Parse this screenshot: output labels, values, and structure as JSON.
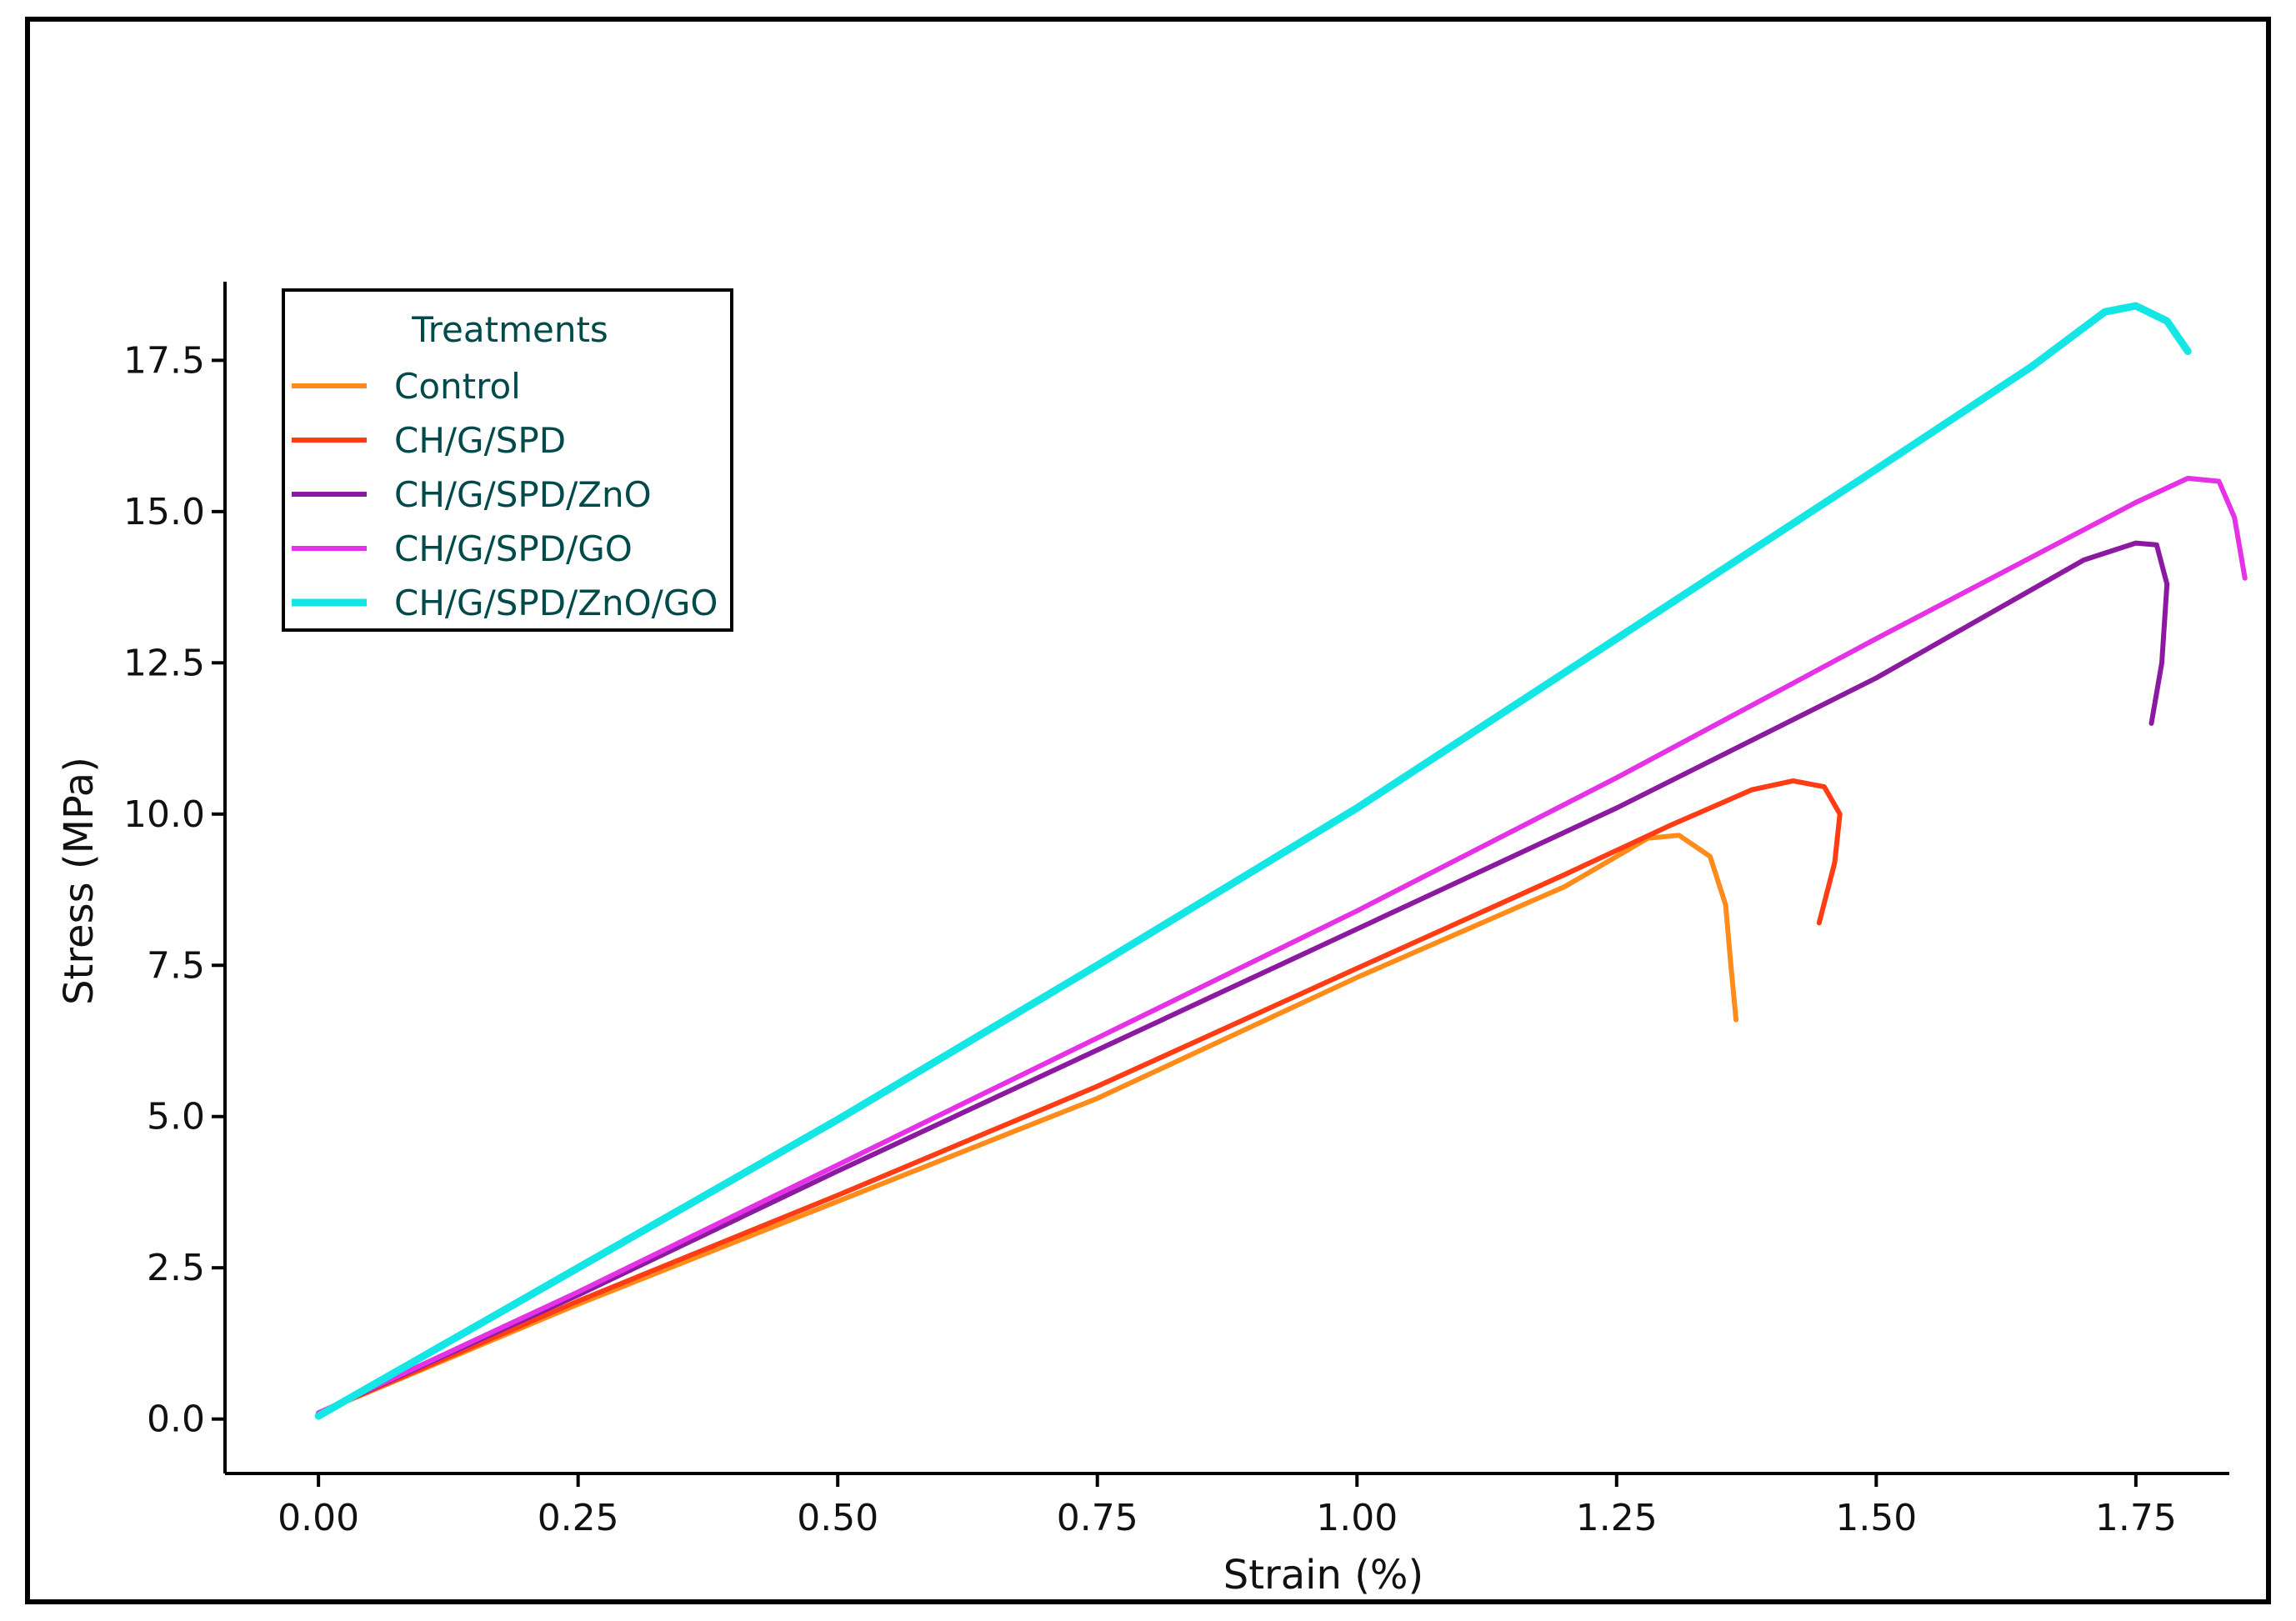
{
  "chart_data": {
    "type": "line",
    "xlabel": "Strain (%)",
    "ylabel": "Stress (MPa)",
    "xlim": [
      -0.09,
      1.84
    ],
    "ylim": [
      -0.9,
      18.8
    ],
    "xticks": [
      "0.00",
      "0.25",
      "0.50",
      "0.75",
      "1.00",
      "1.25",
      "1.50",
      "1.75"
    ],
    "xtick_values": [
      0,
      0.25,
      0.5,
      0.75,
      1.0,
      1.25,
      1.5,
      1.75
    ],
    "yticks": [
      "0.0",
      "2.5",
      "5.0",
      "7.5",
      "10.0",
      "12.5",
      "15.0",
      "17.5"
    ],
    "ytick_values": [
      0,
      2.5,
      5,
      7.5,
      10,
      12.5,
      15,
      17.5
    ],
    "grid": false,
    "legend": {
      "title": "Treatments",
      "position": "top-left"
    },
    "series": [
      {
        "name": "Control",
        "color": "#ff8c1a",
        "points": [
          [
            0,
            0.1
          ],
          [
            0.25,
            1.9
          ],
          [
            0.5,
            3.6
          ],
          [
            0.75,
            5.3
          ],
          [
            1.0,
            7.3
          ],
          [
            1.2,
            8.8
          ],
          [
            1.28,
            9.6
          ],
          [
            1.31,
            9.65
          ],
          [
            1.34,
            9.3
          ],
          [
            1.355,
            8.5
          ],
          [
            1.36,
            7.5
          ],
          [
            1.365,
            6.6
          ]
        ]
      },
      {
        "name": "CH/G/SPD",
        "color": "#ff3c14",
        "points": [
          [
            0,
            0.1
          ],
          [
            0.25,
            1.95
          ],
          [
            0.5,
            3.7
          ],
          [
            0.75,
            5.5
          ],
          [
            1.0,
            7.45
          ],
          [
            1.2,
            9.0
          ],
          [
            1.3,
            9.8
          ],
          [
            1.38,
            10.4
          ],
          [
            1.42,
            10.55
          ],
          [
            1.45,
            10.45
          ],
          [
            1.465,
            10.0
          ],
          [
            1.46,
            9.2
          ],
          [
            1.445,
            8.2
          ]
        ]
      },
      {
        "name": "CH/G/SPD/ZnO",
        "color": "#8c1aa0",
        "points": [
          [
            0,
            0.1
          ],
          [
            0.25,
            2.05
          ],
          [
            0.5,
            4.1
          ],
          [
            0.75,
            6.1
          ],
          [
            1.0,
            8.1
          ],
          [
            1.25,
            10.1
          ],
          [
            1.5,
            12.25
          ],
          [
            1.7,
            14.2
          ],
          [
            1.75,
            14.48
          ],
          [
            1.77,
            14.45
          ],
          [
            1.78,
            13.8
          ],
          [
            1.775,
            12.5
          ],
          [
            1.765,
            11.5
          ]
        ]
      },
      {
        "name": "CH/G/SPD/GO",
        "color": "#e632e6",
        "points": [
          [
            0,
            0.1
          ],
          [
            0.25,
            2.1
          ],
          [
            0.5,
            4.2
          ],
          [
            0.75,
            6.3
          ],
          [
            1.0,
            8.4
          ],
          [
            1.25,
            10.6
          ],
          [
            1.5,
            12.9
          ],
          [
            1.75,
            15.15
          ],
          [
            1.8,
            15.55
          ],
          [
            1.83,
            15.5
          ],
          [
            1.845,
            14.9
          ],
          [
            1.855,
            13.9
          ]
        ]
      },
      {
        "name": "CH/G/SPD/ZnO/GO",
        "color": "#14e6e6",
        "points": [
          [
            0,
            0.05
          ],
          [
            0.25,
            2.5
          ],
          [
            0.5,
            4.95
          ],
          [
            0.75,
            7.5
          ],
          [
            1.0,
            10.1
          ],
          [
            1.25,
            12.9
          ],
          [
            1.5,
            15.7
          ],
          [
            1.65,
            17.4
          ],
          [
            1.72,
            18.3
          ],
          [
            1.75,
            18.4
          ],
          [
            1.78,
            18.15
          ],
          [
            1.8,
            17.65
          ]
        ]
      }
    ]
  }
}
